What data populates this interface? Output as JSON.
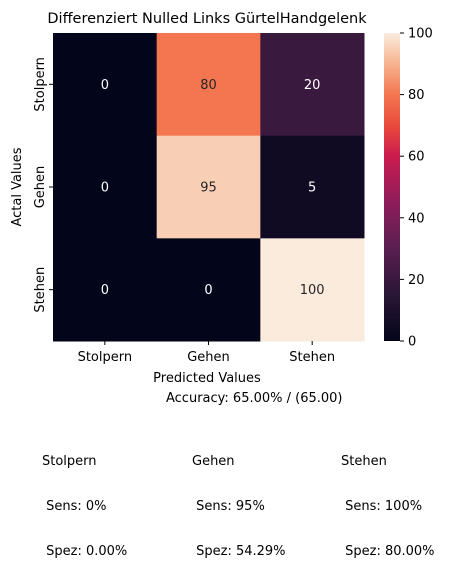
{
  "chart_data": {
    "type": "heatmap",
    "title": "Differenziert Nulled Links GürtelHandgelenk",
    "xlabel": "Predicted Values",
    "ylabel": "Actal Values",
    "x_categories": [
      "Stolpern",
      "Gehen",
      "Stehen"
    ],
    "y_categories": [
      "Stolpern",
      "Gehen",
      "Stehen"
    ],
    "values": [
      [
        0,
        80,
        20
      ],
      [
        0,
        95,
        5
      ],
      [
        0,
        0,
        100
      ]
    ],
    "colorbar": {
      "min": 0,
      "max": 100,
      "ticks": [
        0,
        20,
        40,
        60,
        80,
        100
      ]
    }
  },
  "accuracy": "Accuracy: 65.00% / (65.00)",
  "class_stats": [
    {
      "name": "Stolpern",
      "sens": " Sens: 0%",
      "spez": " Spez: 0.00%"
    },
    {
      "name": "Gehen",
      "sens": " Sens: 95%",
      "spez": " Spez: 54.29%"
    },
    {
      "name": "Stehen",
      "sens": " Sens: 100%",
      "spez": " Spez: 80.00%"
    }
  ]
}
